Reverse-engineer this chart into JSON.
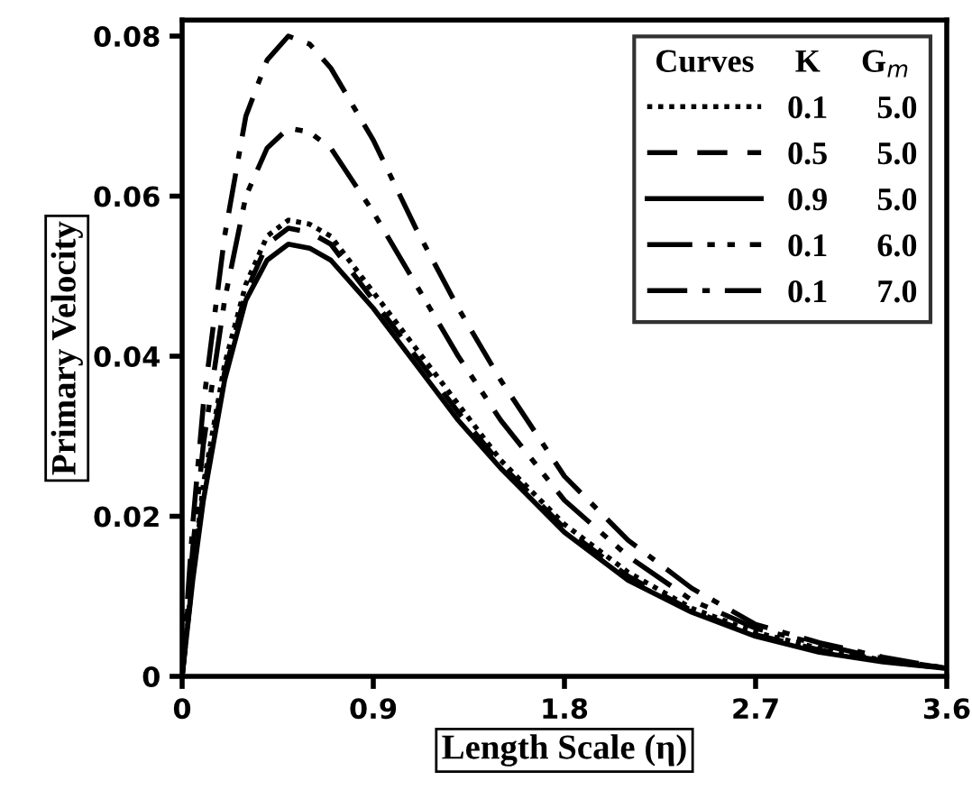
{
  "chart_data": {
    "type": "line",
    "xlabel": "Length Scale (η)",
    "ylabel": "Primary Velocity",
    "legend_title": "Curves     K     G$_{m}$",
    "legend": "top right",
    "x": [
      0,
      0.05,
      0.1,
      0.2,
      0.3,
      0.4,
      0.5,
      0.6,
      0.7,
      0.9,
      1.1,
      1.3,
      1.5,
      1.8,
      2.1,
      2.4,
      2.7,
      3.0,
      3.3,
      3.6
    ],
    "xlim": [
      0,
      3.6
    ],
    "xticks": [
      0,
      0.9,
      1.8,
      2.7,
      3.6
    ],
    "ylim": [
      0,
      0.082
    ],
    "yticks": [
      0,
      0.02,
      0.04,
      0.06,
      0.08
    ],
    "grid": false,
    "series": [
      {
        "name": "0.1      5.0",
        "color": "#000000",
        "line_style": "dotted",
        "values": [
          0,
          0.013,
          0.024,
          0.039,
          0.049,
          0.055,
          0.057,
          0.0565,
          0.055,
          0.048,
          0.041,
          0.034,
          0.027,
          0.019,
          0.013,
          0.0085,
          0.0055,
          0.0035,
          0.002,
          0.001
        ]
      },
      {
        "name": "0.5      5.0",
        "color": "#000000",
        "line_style": "dashed",
        "values": [
          0,
          0.0125,
          0.023,
          0.038,
          0.048,
          0.054,
          0.056,
          0.0555,
          0.054,
          0.047,
          0.04,
          0.033,
          0.0265,
          0.0185,
          0.0125,
          0.0082,
          0.0052,
          0.0033,
          0.0019,
          0.001
        ]
      },
      {
        "name": "0.9      5.0",
        "color": "#000000",
        "line_style": "solid",
        "values": [
          0,
          0.012,
          0.022,
          0.037,
          0.047,
          0.052,
          0.054,
          0.0535,
          0.052,
          0.046,
          0.039,
          0.032,
          0.026,
          0.018,
          0.012,
          0.008,
          0.005,
          0.003,
          0.0018,
          0.001
        ]
      },
      {
        "name": "0.1      6.0",
        "color": "#000000",
        "line_style": "dashdotdot",
        "values": [
          0,
          0.016,
          0.029,
          0.047,
          0.06,
          0.066,
          0.0685,
          0.068,
          0.066,
          0.058,
          0.049,
          0.04,
          0.032,
          0.022,
          0.015,
          0.0095,
          0.006,
          0.004,
          0.0022,
          0.001
        ]
      },
      {
        "name": "0.1      7.0",
        "color": "#000000",
        "line_style": "dashdot",
        "values": [
          0,
          0.019,
          0.034,
          0.055,
          0.07,
          0.077,
          0.08,
          0.079,
          0.076,
          0.067,
          0.056,
          0.046,
          0.037,
          0.025,
          0.017,
          0.011,
          0.0065,
          0.0042,
          0.0024,
          0.001
        ]
      }
    ]
  }
}
